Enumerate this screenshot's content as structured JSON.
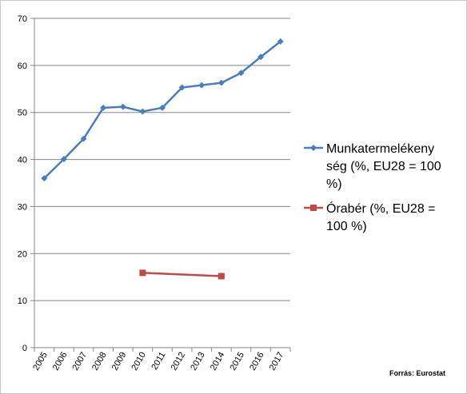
{
  "chart_data": {
    "type": "line",
    "categories": [
      "2005",
      "2006",
      "2007",
      "2008",
      "2009",
      "2010",
      "2011",
      "2012",
      "2013",
      "2014",
      "2015",
      "2016",
      "2017"
    ],
    "ylim": [
      0,
      70
    ],
    "yticks": [
      0,
      10,
      20,
      30,
      40,
      50,
      60,
      70
    ],
    "grid": true,
    "legend_position": "right",
    "series": [
      {
        "name_lines": [
          "Munkatermelékeny",
          "ség (%, EU28 = 100",
          "%)"
        ],
        "color": "#4a7ebb",
        "marker": "diamond",
        "points": [
          {
            "x": "2005",
            "y": 36.0
          },
          {
            "x": "2006",
            "y": 40.1
          },
          {
            "x": "2007",
            "y": 44.4
          },
          {
            "x": "2008",
            "y": 51.0
          },
          {
            "x": "2009",
            "y": 51.2
          },
          {
            "x": "2010",
            "y": 50.2
          },
          {
            "x": "2011",
            "y": 51.0
          },
          {
            "x": "2012",
            "y": 55.3
          },
          {
            "x": "2013",
            "y": 55.8
          },
          {
            "x": "2014",
            "y": 56.3
          },
          {
            "x": "2015",
            "y": 58.4
          },
          {
            "x": "2016",
            "y": 61.8
          },
          {
            "x": "2017",
            "y": 65.1
          }
        ]
      },
      {
        "name_lines": [
          "Órabér (%, EU28 =",
          "100 %)"
        ],
        "color": "#be4b48",
        "marker": "square",
        "points": [
          {
            "x": "2010",
            "y": 15.9
          },
          {
            "x": "2014",
            "y": 15.2
          }
        ]
      }
    ],
    "source": "Forrás: Eurostat"
  }
}
